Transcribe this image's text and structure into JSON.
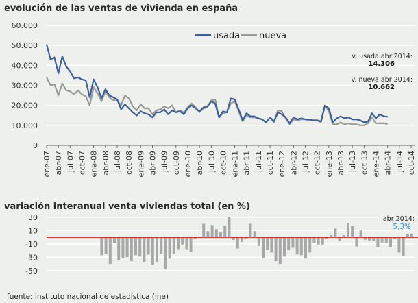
{
  "chart_data": [
    {
      "type": "line",
      "title": "evolución de las ventas de vivienda en españa",
      "x_start": "ene-07",
      "x_end": "abr-14",
      "x_ticks": [
        "ene-07",
        "abr-07",
        "jul-07",
        "oct-07",
        "ene-08",
        "abr-08",
        "jul-08",
        "oct-08",
        "ene-09",
        "abr-09",
        "jul-09",
        "oct-09",
        "ene-10",
        "abr-10",
        "jul-10",
        "oct-10",
        "ene-11",
        "abr-11",
        "jul-11",
        "oct-11",
        "ene-12",
        "abr-12",
        "jul-12",
        "oct-12",
        "ene-13",
        "abr-13",
        "jul-13",
        "oct-13",
        "ene-14",
        "abr-14",
        "jul-14",
        "oct-14"
      ],
      "y_ticks": [
        "0",
        "10.000",
        "20.000",
        "30.000",
        "40.000",
        "50.000",
        "60.000"
      ],
      "ylim": [
        0,
        60000
      ],
      "grid": true,
      "legend_placement": "top-center",
      "series": [
        {
          "name": "usada",
          "color": "#3a5f9a",
          "values": [
            50500,
            43000,
            44000,
            36000,
            44500,
            39500,
            37000,
            33500,
            34000,
            33000,
            32500,
            24000,
            33000,
            29000,
            23500,
            28000,
            25000,
            24000,
            23000,
            18000,
            20500,
            18500,
            16500,
            15000,
            17000,
            16000,
            15500,
            14000,
            16500,
            16500,
            18000,
            15500,
            17500,
            16500,
            17000,
            15500,
            18500,
            20000,
            18500,
            17000,
            19000,
            19500,
            22000,
            21000,
            14000,
            17000,
            16500,
            23500,
            23000,
            18000,
            12500,
            16000,
            14500,
            14500,
            13500,
            13000,
            11500,
            14000,
            12000,
            16500,
            15500,
            14000,
            11000,
            14000,
            13000,
            13500,
            13000,
            13000,
            12500,
            12500,
            12000,
            20000,
            18500,
            11500,
            13500,
            14500,
            13500,
            14000,
            13000,
            13000,
            12500,
            11500,
            12000,
            16000,
            13500,
            15500,
            14500,
            14306
          ]
        },
        {
          "name": "nueva",
          "color": "#9a9a9a",
          "values": [
            34000,
            30000,
            30500,
            25000,
            31000,
            27500,
            27000,
            25500,
            27500,
            25500,
            24500,
            20000,
            29000,
            26000,
            22000,
            27000,
            24000,
            22500,
            22500,
            20000,
            25000,
            23500,
            19500,
            17500,
            20500,
            18500,
            18500,
            15500,
            17500,
            18000,
            19500,
            18500,
            20000,
            16500,
            17500,
            16500,
            19000,
            21000,
            19000,
            16500,
            18500,
            19000,
            22500,
            23000,
            14000,
            16000,
            16500,
            21000,
            22000,
            17000,
            12000,
            15000,
            14000,
            14000,
            13500,
            13000,
            11500,
            14000,
            11500,
            17500,
            17000,
            13500,
            10500,
            13000,
            12500,
            13000,
            13000,
            12500,
            12500,
            12500,
            11500,
            20000,
            17000,
            10500,
            10500,
            11500,
            10500,
            11000,
            10500,
            10500,
            10000,
            10000,
            11000,
            14000,
            11000,
            11000,
            11000,
            10662
          ]
        }
      ],
      "annotations": [
        {
          "label": "v. usada abr 2014:",
          "value": "14.306"
        },
        {
          "label": "v. nueva abr 2014:",
          "value": "10.662"
        }
      ]
    },
    {
      "type": "bar",
      "title": "variación interanual venta viviendas total (en %)",
      "y_ticks": [
        "30",
        "10",
        "-10",
        "-30",
        "-50"
      ],
      "ylim": [
        -55,
        32
      ],
      "grid": true,
      "zero_line_color": "#e00000",
      "bar_color": "#a8a8a8",
      "x_end": "abr-14",
      "values": [
        -27,
        -25,
        -40,
        -9,
        -35,
        -31,
        -30,
        -36,
        -27,
        -29,
        -37,
        -26,
        -41,
        -37,
        -25,
        -48,
        -32,
        -25,
        -18,
        -11,
        -18,
        -22,
        -2,
        -1,
        20,
        9,
        18,
        12,
        7,
        17,
        30,
        -4,
        -17,
        -7,
        -2,
        20,
        9,
        -13,
        -31,
        -19,
        -23,
        -36,
        -40,
        -29,
        -19,
        -16,
        -26,
        -27,
        -32,
        -23,
        -9,
        -11,
        -11,
        -2,
        3,
        13,
        -6,
        3,
        21,
        17,
        -14,
        10,
        -4,
        -5,
        -6,
        -15,
        -8,
        -9,
        -15,
        -3,
        -23,
        -28,
        5,
        5.3
      ],
      "annotation": {
        "label": "abr 2014:",
        "value": "5,3%",
        "color": "#3399dd"
      }
    }
  ],
  "footer": {
    "source": "fuente: instituto nacional de estadística (ine)"
  }
}
